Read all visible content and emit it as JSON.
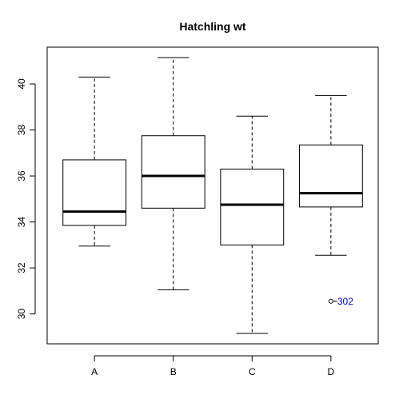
{
  "chart_data": {
    "type": "box",
    "title": "Hatchling wt",
    "xlabel": "",
    "ylabel": "",
    "categories": [
      "A",
      "B",
      "C",
      "D"
    ],
    "boxes": [
      {
        "category": "A",
        "whisker_low": 32.95,
        "q1": 33.85,
        "median": 34.45,
        "q3": 36.7,
        "whisker_high": 40.3
      },
      {
        "category": "B",
        "whisker_low": 31.05,
        "q1": 34.6,
        "median": 36.0,
        "q3": 37.75,
        "whisker_high": 41.15
      },
      {
        "category": "C",
        "whisker_low": 29.15,
        "q1": 33.0,
        "median": 34.75,
        "q3": 36.3,
        "whisker_high": 38.6
      },
      {
        "category": "D",
        "whisker_low": 32.55,
        "q1": 34.65,
        "median": 35.25,
        "q3": 37.35,
        "whisker_high": 39.5
      }
    ],
    "outliers": [
      {
        "category": "D",
        "value": 30.55,
        "label": "302",
        "label_color": "#0000ff"
      }
    ],
    "yticks": [
      30,
      32,
      34,
      36,
      38,
      40
    ],
    "ylim": [
      28.7,
      41.6
    ],
    "grid": false
  }
}
